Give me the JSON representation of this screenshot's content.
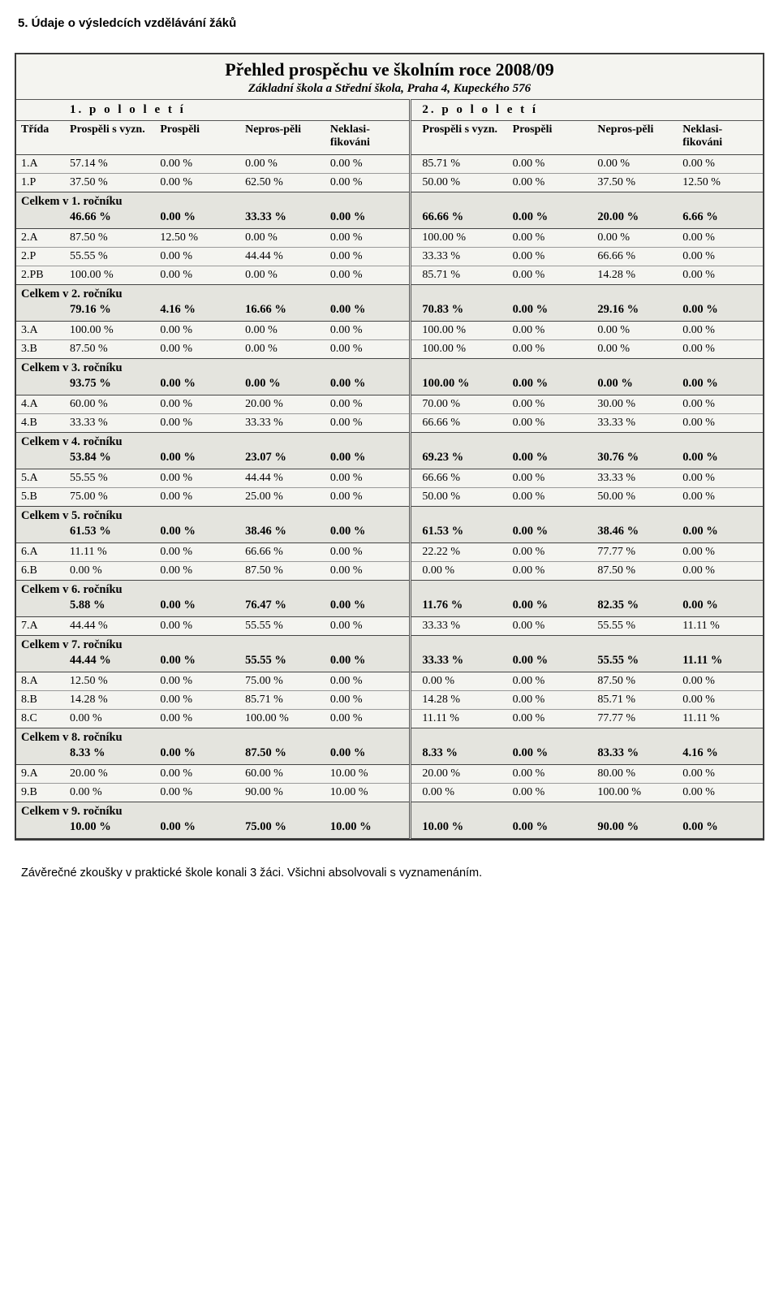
{
  "heading": "5.   Údaje o výsledcích vzdělávání žáků",
  "title": "Přehled prospěchu ve školním roce 2008/09",
  "subtitle": "Základní škola a Střední škola, Praha 4, Kupeckého 576",
  "sem1": "1. p o l o l e t í",
  "sem2": "2. p o l o l e t í",
  "cols": {
    "trida": "Třída",
    "pvyzn": "Prospěli s vyzn.",
    "prosp": "Prospěli",
    "nepr": "Nepros-pěli",
    "nekl": "Neklasi-fikováni",
    "nekl2": "Neklasi-fikováni"
  },
  "groups": [
    {
      "rows": [
        {
          "c": "1.A",
          "a": [
            "57.14 %",
            "0.00 %",
            "0.00 %",
            "0.00 %"
          ],
          "b": [
            "85.71 %",
            "0.00 %",
            "0.00 %",
            "0.00 %"
          ]
        },
        {
          "c": "1.P",
          "a": [
            "37.50 %",
            "0.00 %",
            "62.50 %",
            "0.00 %"
          ],
          "b": [
            "50.00 %",
            "0.00 %",
            "37.50 %",
            "12.50 %"
          ]
        }
      ],
      "sum_label": "Celkem v 1. ročníku",
      "sum": {
        "a": [
          "46.66 %",
          "0.00 %",
          "33.33 %",
          "0.00 %"
        ],
        "b": [
          "66.66 %",
          "0.00 %",
          "20.00 %",
          "6.66 %"
        ]
      }
    },
    {
      "rows": [
        {
          "c": "2.A",
          "a": [
            "87.50 %",
            "12.50 %",
            "0.00 %",
            "0.00 %"
          ],
          "b": [
            "100.00 %",
            "0.00 %",
            "0.00 %",
            "0.00 %"
          ]
        },
        {
          "c": "2.P",
          "a": [
            "55.55 %",
            "0.00 %",
            "44.44 %",
            "0.00 %"
          ],
          "b": [
            "33.33 %",
            "0.00 %",
            "66.66 %",
            "0.00 %"
          ]
        },
        {
          "c": "2.PB",
          "a": [
            "100.00 %",
            "0.00 %",
            "0.00 %",
            "0.00 %"
          ],
          "b": [
            "85.71 %",
            "0.00 %",
            "14.28 %",
            "0.00 %"
          ]
        }
      ],
      "sum_label": "Celkem v 2. ročníku",
      "sum": {
        "a": [
          "79.16 %",
          "4.16 %",
          "16.66 %",
          "0.00 %"
        ],
        "b": [
          "70.83 %",
          "0.00 %",
          "29.16 %",
          "0.00 %"
        ]
      }
    },
    {
      "rows": [
        {
          "c": "3.A",
          "a": [
            "100.00 %",
            "0.00 %",
            "0.00 %",
            "0.00 %"
          ],
          "b": [
            "100.00 %",
            "0.00 %",
            "0.00 %",
            "0.00 %"
          ]
        },
        {
          "c": "3.B",
          "a": [
            "87.50 %",
            "0.00 %",
            "0.00 %",
            "0.00 %"
          ],
          "b": [
            "100.00 %",
            "0.00 %",
            "0.00 %",
            "0.00 %"
          ]
        }
      ],
      "sum_label": "Celkem v 3. ročníku",
      "sum": {
        "a": [
          "93.75 %",
          "0.00 %",
          "0.00 %",
          "0.00 %"
        ],
        "b": [
          "100.00 %",
          "0.00 %",
          "0.00 %",
          "0.00 %"
        ]
      }
    },
    {
      "rows": [
        {
          "c": "4.A",
          "a": [
            "60.00 %",
            "0.00 %",
            "20.00 %",
            "0.00 %"
          ],
          "b": [
            "70.00 %",
            "0.00 %",
            "30.00 %",
            "0.00 %"
          ]
        },
        {
          "c": "4.B",
          "a": [
            "33.33 %",
            "0.00 %",
            "33.33 %",
            "0.00 %"
          ],
          "b": [
            "66.66 %",
            "0.00 %",
            "33.33 %",
            "0.00 %"
          ]
        }
      ],
      "sum_label": "Celkem v 4. ročníku",
      "sum": {
        "a": [
          "53.84 %",
          "0.00 %",
          "23.07 %",
          "0.00 %"
        ],
        "b": [
          "69.23 %",
          "0.00 %",
          "30.76 %",
          "0.00 %"
        ]
      }
    },
    {
      "rows": [
        {
          "c": "5.A",
          "a": [
            "55.55 %",
            "0.00 %",
            "44.44 %",
            "0.00 %"
          ],
          "b": [
            "66.66 %",
            "0.00 %",
            "33.33 %",
            "0.00 %"
          ]
        },
        {
          "c": "5.B",
          "a": [
            "75.00 %",
            "0.00 %",
            "25.00 %",
            "0.00 %"
          ],
          "b": [
            "50.00 %",
            "0.00 %",
            "50.00 %",
            "0.00 %"
          ]
        }
      ],
      "sum_label": "Celkem v 5. ročníku",
      "sum": {
        "a": [
          "61.53 %",
          "0.00 %",
          "38.46 %",
          "0.00 %"
        ],
        "b": [
          "61.53 %",
          "0.00 %",
          "38.46 %",
          "0.00 %"
        ]
      }
    },
    {
      "rows": [
        {
          "c": "6.A",
          "a": [
            "11.11 %",
            "0.00 %",
            "66.66 %",
            "0.00 %"
          ],
          "b": [
            "22.22 %",
            "0.00 %",
            "77.77 %",
            "0.00 %"
          ]
        },
        {
          "c": "6.B",
          "a": [
            "0.00 %",
            "0.00 %",
            "87.50 %",
            "0.00 %"
          ],
          "b": [
            "0.00 %",
            "0.00 %",
            "87.50 %",
            "0.00 %"
          ]
        }
      ],
      "sum_label": "Celkem v 6. ročníku",
      "sum": {
        "a": [
          "5.88 %",
          "0.00 %",
          "76.47 %",
          "0.00 %"
        ],
        "b": [
          "11.76 %",
          "0.00 %",
          "82.35 %",
          "0.00 %"
        ]
      }
    },
    {
      "rows": [
        {
          "c": "7.A",
          "a": [
            "44.44 %",
            "0.00 %",
            "55.55 %",
            "0.00 %"
          ],
          "b": [
            "33.33 %",
            "0.00 %",
            "55.55 %",
            "11.11 %"
          ]
        }
      ],
      "sum_label": "Celkem v 7. ročníku",
      "sum": {
        "a": [
          "44.44 %",
          "0.00 %",
          "55.55 %",
          "0.00 %"
        ],
        "b": [
          "33.33 %",
          "0.00 %",
          "55.55 %",
          "11.11 %"
        ]
      }
    },
    {
      "rows": [
        {
          "c": "8.A",
          "a": [
            "12.50 %",
            "0.00 %",
            "75.00 %",
            "0.00 %"
          ],
          "b": [
            "0.00 %",
            "0.00 %",
            "87.50 %",
            "0.00 %"
          ]
        },
        {
          "c": "8.B",
          "a": [
            "14.28 %",
            "0.00 %",
            "85.71 %",
            "0.00 %"
          ],
          "b": [
            "14.28 %",
            "0.00 %",
            "85.71 %",
            "0.00 %"
          ]
        },
        {
          "c": "8.C",
          "a": [
            "0.00 %",
            "0.00 %",
            "100.00 %",
            "0.00 %"
          ],
          "b": [
            "11.11 %",
            "0.00 %",
            "77.77 %",
            "11.11 %"
          ]
        }
      ],
      "sum_label": "Celkem v 8. ročníku",
      "sum": {
        "a": [
          "8.33 %",
          "0.00 %",
          "87.50 %",
          "0.00 %"
        ],
        "b": [
          "8.33 %",
          "0.00 %",
          "83.33 %",
          "4.16 %"
        ]
      }
    },
    {
      "rows": [
        {
          "c": "9.A",
          "a": [
            "20.00 %",
            "0.00 %",
            "60.00 %",
            "10.00 %"
          ],
          "b": [
            "20.00 %",
            "0.00 %",
            "80.00 %",
            "0.00 %"
          ]
        },
        {
          "c": "9.B",
          "a": [
            "0.00 %",
            "0.00 %",
            "90.00 %",
            "10.00 %"
          ],
          "b": [
            "0.00 %",
            "0.00 %",
            "100.00 %",
            "0.00 %"
          ]
        }
      ],
      "sum_label": "Celkem v 9. ročníku",
      "sum": {
        "a": [
          "10.00 %",
          "0.00 %",
          "75.00 %",
          "10.00 %"
        ],
        "b": [
          "10.00 %",
          "0.00 %",
          "90.00 %",
          "0.00 %"
        ]
      }
    }
  ],
  "footnote": "Závěrečné zkoušky v praktické škole konali 3 žáci. Všichni absolvovali s vyznamenáním."
}
